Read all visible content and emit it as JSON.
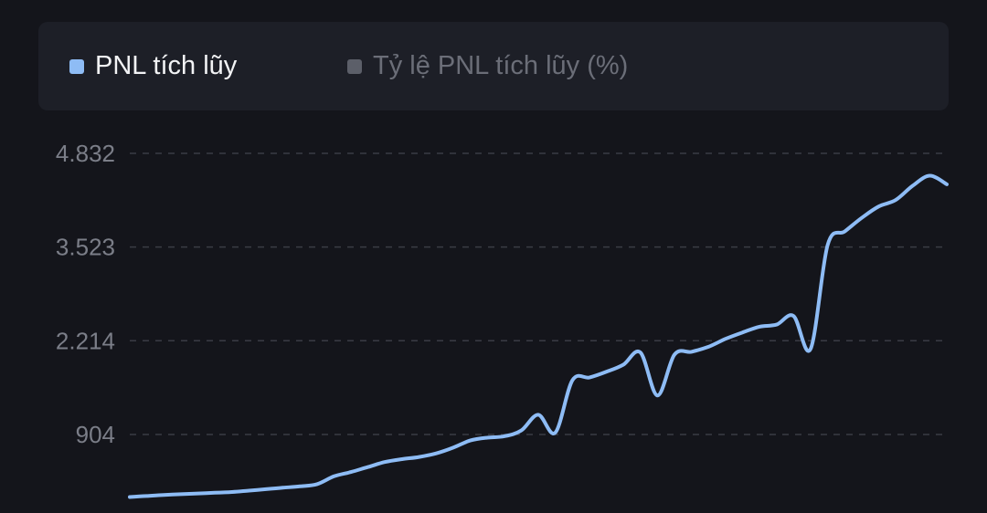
{
  "legend": {
    "items": [
      {
        "label": "PNL tích lũy",
        "color": "#8ebcf5",
        "active": true
      },
      {
        "label": "Tỷ lệ PNL tích lũy (%)",
        "color": "#5c5f69",
        "active": false
      }
    ]
  },
  "chart_data": {
    "type": "line",
    "grid": true,
    "legend_position": "top",
    "y_ticks": [
      "4.832",
      "3.523",
      "2.214",
      "904"
    ],
    "y_tick_values": [
      4832,
      3523,
      2214,
      904
    ],
    "ylim": [
      0,
      4832
    ],
    "series": [
      {
        "name": "PNL tích lũy",
        "color": "#8ebcf5",
        "values": [
          30,
          45,
          60,
          70,
          80,
          90,
          100,
          120,
          140,
          160,
          180,
          210,
          320,
          380,
          450,
          520,
          560,
          590,
          640,
          720,
          820,
          860,
          880,
          960,
          1180,
          930,
          1660,
          1700,
          1780,
          1880,
          2050,
          1450,
          2020,
          2060,
          2130,
          2240,
          2330,
          2410,
          2440,
          2560,
          2100,
          3550,
          3740,
          3930,
          4090,
          4180,
          4380,
          4520,
          4400
        ]
      }
    ]
  }
}
